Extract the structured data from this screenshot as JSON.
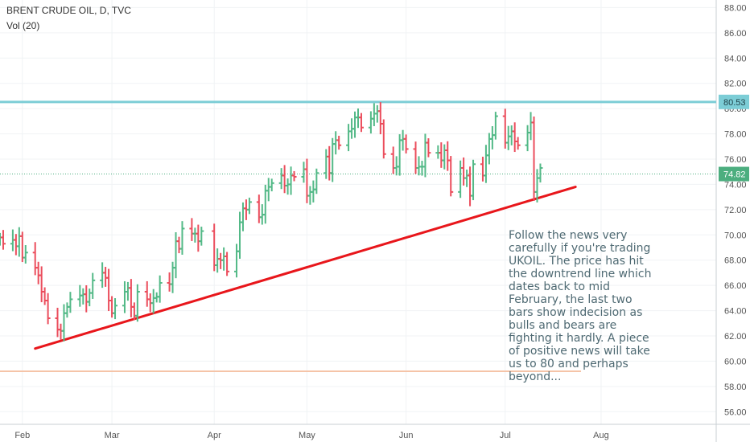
{
  "header": {
    "symbol": "BRENT CRUDE OIL, D, TVC",
    "indicator": "Vol (20)"
  },
  "annotation": "Follow the news very\ncarefully if you're trading\nUKOIL. The price has hit\nthe downtrend line which\ndates back to mid\nFebruary, the last two\nbars show indecision as\nbulls and bears are\nfighting it hardly. A piece\nof positive news will take\nus to 80 and perhaps\nbeyond...",
  "colors": {
    "up": "#53b987",
    "down": "#eb4d5c",
    "trendline": "#e8161b",
    "resistance": "#7ccdd6",
    "support": "#f5c4a8",
    "last_price": "#4cae7f"
  },
  "chart_data": {
    "type": "ohlc",
    "yaxis": {
      "ticks": [
        "56.00",
        "58.00",
        "60.00",
        "62.00",
        "64.00",
        "66.00",
        "68.00",
        "70.00",
        "72.00",
        "74.00",
        "76.00",
        "78.00",
        "80.00",
        "82.00",
        "84.00",
        "86.00",
        "88.00"
      ],
      "ylim": [
        55,
        88.6
      ]
    },
    "xaxis": {
      "labels": [
        "Feb",
        "Mar",
        "Apr",
        "May",
        "Jun",
        "Jul",
        "Aug"
      ],
      "dates": [
        "2018-02-01",
        "2018-03-01",
        "2018-04-02",
        "2018-05-01",
        "2018-06-01",
        "2018-07-02",
        "2018-08-01"
      ],
      "xlim": [
        "2018-01-25",
        "2018-09-06"
      ]
    },
    "levels": [
      {
        "name": "resistance",
        "value": 80.53,
        "label": "80.53"
      },
      {
        "name": "last_price",
        "value": 74.82,
        "label": "74.82"
      },
      {
        "name": "support",
        "value": 59.2
      }
    ],
    "trendline": {
      "from": [
        "2018-02-05",
        61.0
      ],
      "to": [
        "2018-07-24",
        73.8
      ]
    },
    "bars_close": [
      [
        "2018-01-25",
        69.8
      ],
      [
        "2018-01-26",
        69.3
      ],
      [
        "2018-01-29",
        69.6
      ],
      [
        "2018-01-30",
        69.1
      ],
      [
        "2018-01-31",
        69.9
      ],
      [
        "2018-02-01",
        68.2
      ],
      [
        "2018-02-02",
        68.6
      ],
      [
        "2018-02-05",
        67.4
      ],
      [
        "2018-02-06",
        66.8
      ],
      [
        "2018-02-07",
        65.5
      ],
      [
        "2018-02-08",
        64.8
      ],
      [
        "2018-02-09",
        63.4
      ],
      [
        "2018-02-12",
        62.5
      ],
      [
        "2018-02-13",
        62.4
      ],
      [
        "2018-02-14",
        63.8
      ],
      [
        "2018-02-15",
        64.3
      ],
      [
        "2018-02-16",
        64.9
      ],
      [
        "2018-02-19",
        65.2
      ],
      [
        "2018-02-20",
        65.3
      ],
      [
        "2018-02-21",
        64.7
      ],
      [
        "2018-02-22",
        65.4
      ],
      [
        "2018-02-23",
        66.4
      ],
      [
        "2018-02-26",
        67.0
      ],
      [
        "2018-02-27",
        66.6
      ],
      [
        "2018-02-28",
        64.8
      ],
      [
        "2018-03-01",
        63.8
      ],
      [
        "2018-03-02",
        64.4
      ],
      [
        "2018-03-05",
        65.5
      ],
      [
        "2018-03-06",
        65.8
      ],
      [
        "2018-03-07",
        64.3
      ],
      [
        "2018-03-08",
        63.6
      ],
      [
        "2018-03-09",
        65.5
      ],
      [
        "2018-03-12",
        64.9
      ],
      [
        "2018-03-13",
        64.6
      ],
      [
        "2018-03-14",
        65.0
      ],
      [
        "2018-03-15",
        65.1
      ],
      [
        "2018-03-16",
        66.2
      ],
      [
        "2018-03-19",
        66.1
      ],
      [
        "2018-03-20",
        67.4
      ],
      [
        "2018-03-21",
        69.5
      ],
      [
        "2018-03-22",
        68.9
      ],
      [
        "2018-03-23",
        70.5
      ],
      [
        "2018-03-26",
        70.1
      ],
      [
        "2018-03-27",
        70.1
      ],
      [
        "2018-03-28",
        69.5
      ],
      [
        "2018-03-29",
        70.3
      ],
      [
        "2018-04-02",
        67.6
      ],
      [
        "2018-04-03",
        68.1
      ],
      [
        "2018-04-04",
        68.0
      ],
      [
        "2018-04-05",
        68.3
      ],
      [
        "2018-04-06",
        67.1
      ],
      [
        "2018-04-09",
        68.7
      ],
      [
        "2018-04-10",
        71.0
      ],
      [
        "2018-04-11",
        72.1
      ],
      [
        "2018-04-12",
        72.0
      ],
      [
        "2018-04-13",
        72.6
      ],
      [
        "2018-04-16",
        71.4
      ],
      [
        "2018-04-17",
        71.6
      ],
      [
        "2018-04-18",
        73.5
      ],
      [
        "2018-04-19",
        73.8
      ],
      [
        "2018-04-20",
        74.1
      ],
      [
        "2018-04-23",
        74.7
      ],
      [
        "2018-04-24",
        73.9
      ],
      [
        "2018-04-25",
        74.0
      ],
      [
        "2018-04-26",
        74.7
      ],
      [
        "2018-04-27",
        74.6
      ],
      [
        "2018-04-30",
        75.2
      ],
      [
        "2018-05-01",
        73.1
      ],
      [
        "2018-05-02",
        73.4
      ],
      [
        "2018-05-03",
        73.6
      ],
      [
        "2018-05-04",
        74.9
      ],
      [
        "2018-05-07",
        76.2
      ],
      [
        "2018-05-08",
        74.9
      ],
      [
        "2018-05-09",
        77.2
      ],
      [
        "2018-05-10",
        77.5
      ],
      [
        "2018-05-11",
        77.1
      ],
      [
        "2018-05-14",
        78.2
      ],
      [
        "2018-05-15",
        78.4
      ],
      [
        "2018-05-16",
        79.3
      ],
      [
        "2018-05-17",
        79.3
      ],
      [
        "2018-05-18",
        78.5
      ],
      [
        "2018-05-21",
        79.2
      ],
      [
        "2018-05-22",
        79.6
      ],
      [
        "2018-05-23",
        79.8
      ],
      [
        "2018-05-24",
        78.8
      ],
      [
        "2018-05-25",
        76.4
      ],
      [
        "2018-05-28",
        75.3
      ],
      [
        "2018-05-29",
        75.4
      ],
      [
        "2018-05-30",
        77.5
      ],
      [
        "2018-05-31",
        77.6
      ],
      [
        "2018-06-01",
        76.8
      ],
      [
        "2018-06-04",
        75.3
      ],
      [
        "2018-06-05",
        75.4
      ],
      [
        "2018-06-06",
        75.4
      ],
      [
        "2018-06-07",
        77.3
      ],
      [
        "2018-06-08",
        76.5
      ],
      [
        "2018-06-11",
        76.5
      ],
      [
        "2018-06-12",
        75.9
      ],
      [
        "2018-06-13",
        76.7
      ],
      [
        "2018-06-14",
        75.9
      ],
      [
        "2018-06-15",
        73.4
      ],
      [
        "2018-06-18",
        75.3
      ],
      [
        "2018-06-19",
        74.5
      ],
      [
        "2018-06-20",
        74.7
      ],
      [
        "2018-06-21",
        73.1
      ],
      [
        "2018-06-22",
        75.6
      ],
      [
        "2018-06-25",
        74.7
      ],
      [
        "2018-06-26",
        76.3
      ],
      [
        "2018-06-27",
        77.6
      ],
      [
        "2018-06-28",
        77.9
      ],
      [
        "2018-06-29",
        79.4
      ],
      [
        "2018-07-02",
        77.3
      ],
      [
        "2018-07-03",
        77.8
      ],
      [
        "2018-07-04",
        78.2
      ],
      [
        "2018-07-05",
        77.4
      ],
      [
        "2018-07-06",
        77.1
      ],
      [
        "2018-07-09",
        78.1
      ],
      [
        "2018-07-10",
        78.9
      ],
      [
        "2018-07-11",
        73.4
      ],
      [
        "2018-07-12",
        74.5
      ],
      [
        "2018-07-13",
        75.3
      ]
    ]
  }
}
